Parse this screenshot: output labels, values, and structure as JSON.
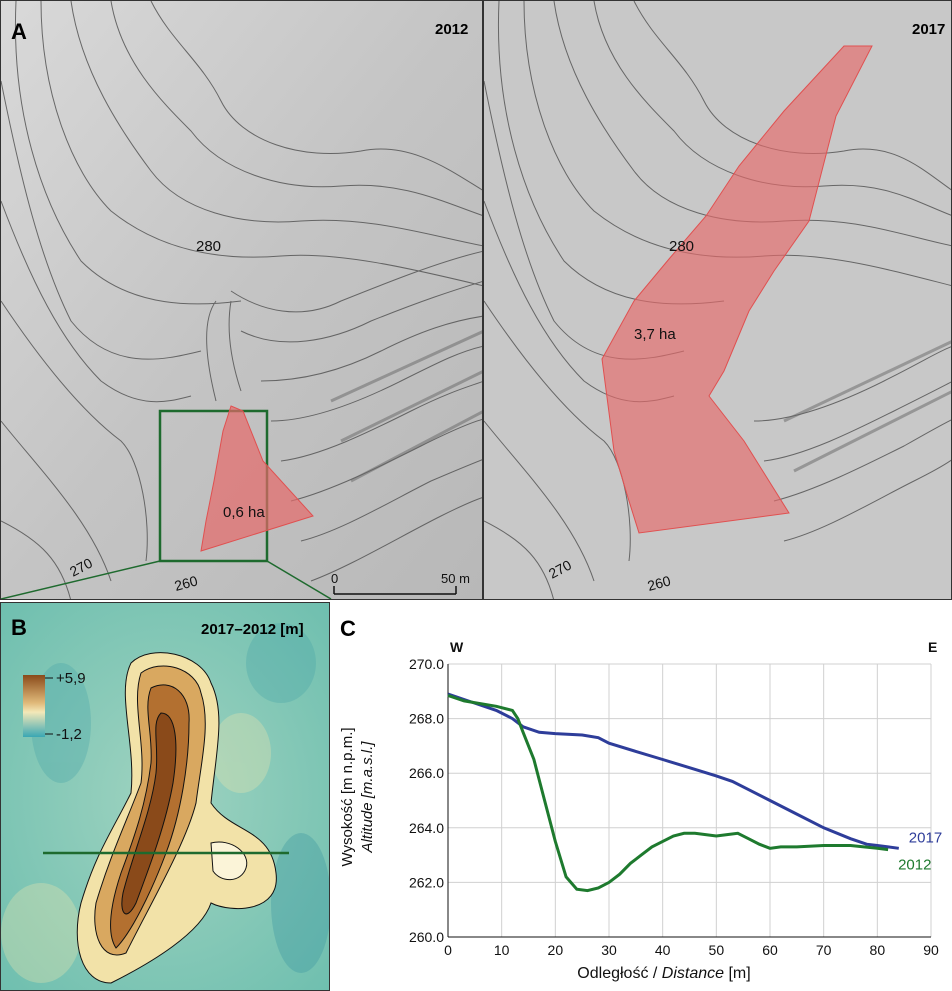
{
  "panel_a": {
    "letter": "A",
    "left_year": "2012",
    "right_year": "2017",
    "left_area": "0,6 ha",
    "right_area": "3,7 ha",
    "contours_left": [
      "280",
      "270",
      "260"
    ],
    "contours_right": [
      "280",
      "270",
      "260"
    ],
    "scale_start": "0",
    "scale_end": "50 m"
  },
  "panel_b": {
    "letter": "B",
    "title": "2017–2012 [m]",
    "legend_max": "+5,9",
    "legend_min": "-1,2"
  },
  "panel_c": {
    "letter": "C",
    "west": "W",
    "east": "E"
  },
  "colors": {
    "landslide_fill": "#e66a6a",
    "profile_2017": "#2e3d9a",
    "profile_2012": "#1e7a2e",
    "inset_box": "#1e6a2e",
    "elevation_high": "#8a4a1a",
    "elevation_low": "#3aa7b4"
  },
  "chart_data": {
    "type": "line",
    "xlabel_plain": "Odległość / ",
    "xlabel_italic": "Distance",
    "xlabel_unit": " [m]",
    "ylabel_plain": "Wysokość [m n.p.m.]",
    "ylabel_italic": "Altitude [m.a.s.l.]",
    "xlim": [
      0,
      90
    ],
    "ylim": [
      260,
      270
    ],
    "x_ticks": [
      "0",
      "10",
      "20",
      "30",
      "40",
      "50",
      "60",
      "70",
      "80",
      "90"
    ],
    "y_ticks": [
      "260.0",
      "262.0",
      "264.0",
      "266.0",
      "268.0",
      "270.0"
    ],
    "grid": true,
    "series": [
      {
        "name": "2017",
        "color": "#2e3d9a",
        "points": [
          [
            0,
            268.9
          ],
          [
            3,
            268.7
          ],
          [
            6,
            268.5
          ],
          [
            9,
            268.3
          ],
          [
            12,
            268.0
          ],
          [
            14,
            267.7
          ],
          [
            17,
            267.5
          ],
          [
            20,
            267.45
          ],
          [
            25,
            267.4
          ],
          [
            28,
            267.3
          ],
          [
            30,
            267.1
          ],
          [
            35,
            266.8
          ],
          [
            40,
            266.5
          ],
          [
            45,
            266.2
          ],
          [
            50,
            265.9
          ],
          [
            53,
            265.7
          ],
          [
            56,
            265.4
          ],
          [
            60,
            265.0
          ],
          [
            65,
            264.5
          ],
          [
            70,
            264.0
          ],
          [
            75,
            263.6
          ],
          [
            78,
            263.4
          ],
          [
            80,
            263.35
          ],
          [
            82,
            263.3
          ],
          [
            84,
            263.25
          ]
        ]
      },
      {
        "name": "2012",
        "color": "#1e7a2e",
        "points": [
          [
            0,
            268.85
          ],
          [
            3,
            268.65
          ],
          [
            6,
            268.55
          ],
          [
            9,
            268.45
          ],
          [
            12,
            268.3
          ],
          [
            13,
            268.0
          ],
          [
            14,
            267.5
          ],
          [
            16,
            266.5
          ],
          [
            18,
            265.0
          ],
          [
            20,
            263.5
          ],
          [
            22,
            262.2
          ],
          [
            24,
            261.75
          ],
          [
            26,
            261.7
          ],
          [
            28,
            261.8
          ],
          [
            30,
            262.0
          ],
          [
            32,
            262.3
          ],
          [
            34,
            262.7
          ],
          [
            36,
            263.0
          ],
          [
            38,
            263.3
          ],
          [
            40,
            263.5
          ],
          [
            42,
            263.7
          ],
          [
            44,
            263.8
          ],
          [
            46,
            263.8
          ],
          [
            48,
            263.75
          ],
          [
            50,
            263.7
          ],
          [
            52,
            263.75
          ],
          [
            54,
            263.8
          ],
          [
            56,
            263.6
          ],
          [
            58,
            263.4
          ],
          [
            60,
            263.25
          ],
          [
            62,
            263.3
          ],
          [
            65,
            263.3
          ],
          [
            70,
            263.35
          ],
          [
            75,
            263.35
          ],
          [
            80,
            263.25
          ],
          [
            82,
            263.2
          ]
        ]
      }
    ]
  }
}
